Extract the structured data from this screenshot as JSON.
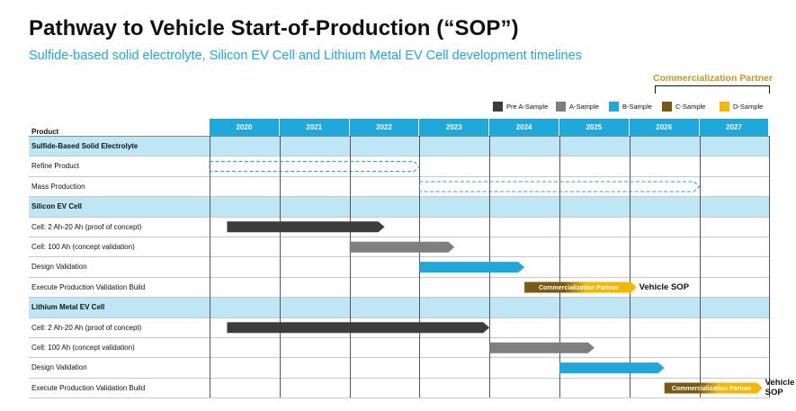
{
  "header": {
    "title": "Pathway to Vehicle Start-of-Production (“SOP”)",
    "subtitle": "Sulfide-based solid electrolyte, Silicon EV Cell and Lithium Metal EV Cell development timelines",
    "partner_label": "Commercialization Partner"
  },
  "colors": {
    "accent": "#1fa8dc",
    "band": "#bfe6f5",
    "pre_a": "#3c3c3c",
    "a": "#7f7f7f",
    "b": "#1fa8dc",
    "c": "#7a5a10",
    "d": "#f5b800"
  },
  "chart_data": {
    "type": "gantt",
    "title": "Pathway to Vehicle Start-of-Production (“SOP”)",
    "product_header": "Product",
    "years": [
      "2020",
      "2021",
      "2022",
      "2023",
      "2024",
      "2025",
      "2026",
      "2027"
    ],
    "legend": [
      {
        "label": "Pre A-Sample",
        "color": "#3c3c3c"
      },
      {
        "label": "A-Sample",
        "color": "#7f7f7f"
      },
      {
        "label": "B-Sample",
        "color": "#1fa8dc"
      },
      {
        "label": "C-Sample",
        "color": "#7a5a10"
      },
      {
        "label": "D-Sample",
        "color": "#f5b800"
      }
    ],
    "rows": [
      {
        "label": "Sulfide-Based Solid Electrolyte",
        "section": true
      },
      {
        "label": "Refine Product",
        "bars": [
          {
            "start": 2020.0,
            "end": 2023.0,
            "style": "dashed"
          }
        ]
      },
      {
        "label": "Mass Production",
        "bars": [
          {
            "start": 2023.0,
            "end": 2027.0,
            "style": "dashed"
          }
        ]
      },
      {
        "label": "Silicon EV Cell",
        "section": true
      },
      {
        "label": "Cell: 2 Ah-20 Ah (proof of concept)",
        "bars": [
          {
            "start": 2020.25,
            "end": 2022.5,
            "style": "pre_a"
          }
        ]
      },
      {
        "label": "Cell: 100 Ah (concept validation)",
        "bars": [
          {
            "start": 2022.0,
            "end": 2023.5,
            "style": "a"
          }
        ]
      },
      {
        "label": "Design Validation",
        "bars": [
          {
            "start": 2023.0,
            "end": 2024.5,
            "style": "b"
          }
        ]
      },
      {
        "label": "Execute Production Validation Build",
        "bars": [
          {
            "start": 2024.5,
            "end": 2026.1,
            "style": "cd",
            "text": "Commercialization Partner"
          }
        ],
        "end_label": "Vehicle SOP"
      },
      {
        "label": "Lithium Metal EV Cell",
        "section": true
      },
      {
        "label": "Cell: 2 Ah-20 Ah (proof of concept)",
        "bars": [
          {
            "start": 2020.25,
            "end": 2024.0,
            "style": "pre_a"
          }
        ]
      },
      {
        "label": "Cell: 100 Ah (concept validation)",
        "bars": [
          {
            "start": 2024.0,
            "end": 2025.5,
            "style": "a"
          }
        ]
      },
      {
        "label": "Design Validation",
        "bars": [
          {
            "start": 2025.0,
            "end": 2026.5,
            "style": "b"
          }
        ]
      },
      {
        "label": "Execute Production Validation Build",
        "bars": [
          {
            "start": 2026.5,
            "end": 2027.9,
            "style": "cd",
            "text": "Commercialization Partner"
          }
        ],
        "end_label": "Vehicle SOP"
      }
    ]
  }
}
